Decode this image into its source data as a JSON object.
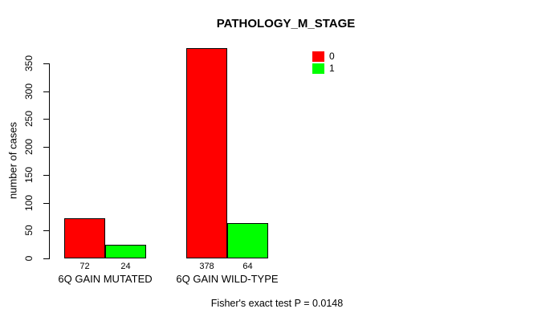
{
  "chart_data": {
    "type": "bar",
    "title": "PATHOLOGY_M_STAGE",
    "ylabel": "number of cases",
    "xlabel": "",
    "ylim": [
      0,
      350
    ],
    "yticks": [
      0,
      50,
      100,
      150,
      200,
      250,
      300,
      350
    ],
    "categories": [
      "6Q GAIN MUTATED",
      "6Q GAIN WILD-TYPE"
    ],
    "series": [
      {
        "name": "0",
        "color": "#ff0000",
        "values": [
          72,
          378
        ]
      },
      {
        "name": "1",
        "color": "#00ff00",
        "values": [
          24,
          64
        ]
      }
    ],
    "bar_value_labels": [
      [
        "72",
        "24"
      ],
      [
        "378",
        "64"
      ]
    ],
    "grid": false,
    "legend_position": "top-right",
    "annotation": "Fisher's exact test P = 0.0148"
  },
  "colors": {
    "background": "#ffffff",
    "axis": "#000000",
    "text": "#000000",
    "bar_border": "#000000",
    "series_0": "#ff0000",
    "series_1": "#00ff00"
  }
}
